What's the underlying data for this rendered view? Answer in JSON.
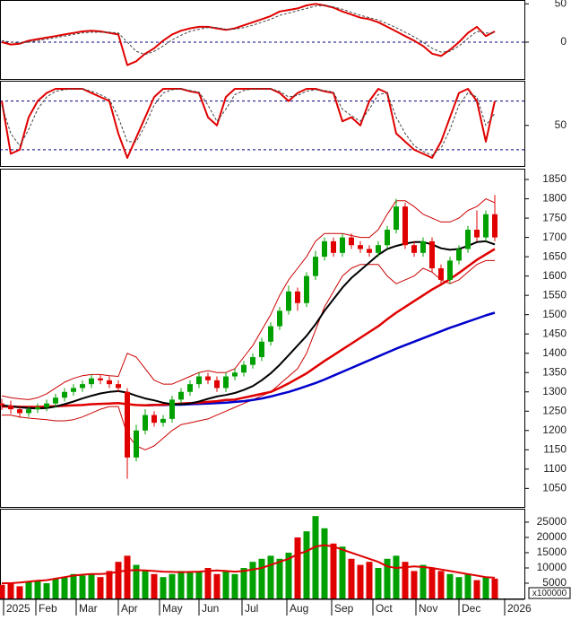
{
  "chart_data": [
    {
      "type": "line",
      "xlim": [
        -0.2,
        58.3
      ],
      "ylim": [
        -48,
        55
      ],
      "yticks": [
        0,
        50
      ],
      "reference_lines": [
        0
      ],
      "series": [
        {
          "color": "#e00000",
          "width": 2,
          "values": [
            0,
            -3,
            -2,
            2,
            4,
            6,
            8,
            10,
            12,
            14,
            15,
            14,
            12,
            10,
            -30,
            -25,
            -15,
            -8,
            2,
            10,
            15,
            18,
            20,
            20,
            18,
            16,
            18,
            22,
            26,
            30,
            34,
            40,
            42,
            44,
            48,
            50,
            48,
            45,
            40,
            36,
            32,
            30,
            26,
            20,
            14,
            8,
            2,
            -5,
            -15,
            -18,
            -10,
            0,
            12,
            20,
            8,
            14
          ]
        },
        {
          "color": "#444444",
          "width": 1,
          "dash": "3,2",
          "values": [
            2,
            0,
            -1,
            0,
            2,
            4,
            6,
            8,
            10,
            12,
            13,
            13,
            13,
            12,
            0,
            -12,
            -16,
            -12,
            -5,
            3,
            9,
            14,
            17,
            19,
            19,
            17,
            17,
            19,
            22,
            26,
            30,
            35,
            38,
            41,
            44,
            47,
            48,
            46,
            43,
            39,
            35,
            32,
            29,
            24,
            19,
            13,
            7,
            0,
            -8,
            -13,
            -12,
            -5,
            5,
            14,
            12,
            12
          ]
        }
      ]
    },
    {
      "type": "line",
      "xlim": [
        -0.2,
        58.3
      ],
      "ylim": [
        0,
        105
      ],
      "yticks": [
        50
      ],
      "reference_lines": [
        20,
        80
      ],
      "series": [
        {
          "color": "#e00000",
          "width": 2,
          "values": [
            80,
            15,
            20,
            60,
            80,
            90,
            95,
            95,
            95,
            95,
            90,
            85,
            80,
            40,
            10,
            35,
            60,
            85,
            95,
            95,
            95,
            92,
            90,
            60,
            50,
            85,
            95,
            95,
            95,
            95,
            95,
            90,
            80,
            90,
            95,
            95,
            92,
            90,
            55,
            60,
            50,
            80,
            95,
            90,
            40,
            30,
            20,
            15,
            10,
            30,
            60,
            90,
            95,
            80,
            30,
            80
          ]
        },
        {
          "color": "#444444",
          "width": 1,
          "dash": "3,2",
          "values": [
            75,
            40,
            25,
            45,
            70,
            85,
            92,
            94,
            95,
            95,
            92,
            88,
            82,
            60,
            30,
            30,
            50,
            75,
            90,
            94,
            95,
            93,
            91,
            75,
            55,
            70,
            88,
            93,
            95,
            95,
            95,
            92,
            85,
            87,
            92,
            94,
            93,
            91,
            70,
            62,
            55,
            70,
            88,
            90,
            60,
            40,
            25,
            18,
            13,
            22,
            45,
            75,
            90,
            85,
            50,
            65
          ]
        }
      ]
    },
    {
      "type": "candlestick",
      "xlim": [
        -0.2,
        58.3
      ],
      "ylim": [
        1002,
        1878
      ],
      "yticks": [
        1050,
        1100,
        1150,
        1200,
        1250,
        1300,
        1350,
        1400,
        1450,
        1500,
        1550,
        1600,
        1650,
        1700,
        1750,
        1800,
        1850
      ],
      "up_color": "#00a000",
      "down_color": "#e00000",
      "open": [
        1270,
        1265,
        1255,
        1245,
        1255,
        1260,
        1270,
        1285,
        1300,
        1310,
        1320,
        1335,
        1330,
        1320,
        1300,
        1130,
        1200,
        1240,
        1220,
        1230,
        1280,
        1300,
        1320,
        1340,
        1330,
        1310,
        1340,
        1350,
        1370,
        1390,
        1430,
        1470,
        1510,
        1560,
        1530,
        1600,
        1650,
        1690,
        1660,
        1700,
        1680,
        1670,
        1660,
        1680,
        1720,
        1780,
        1680,
        1660,
        1690,
        1620,
        1590,
        1640,
        1670,
        1720,
        1700,
        1760
      ],
      "high": [
        1282,
        1277,
        1265,
        1262,
        1270,
        1280,
        1295,
        1310,
        1320,
        1330,
        1345,
        1345,
        1340,
        1330,
        1310,
        1215,
        1255,
        1250,
        1240,
        1290,
        1310,
        1330,
        1350,
        1350,
        1340,
        1350,
        1360,
        1380,
        1400,
        1440,
        1480,
        1520,
        1575,
        1570,
        1610,
        1665,
        1700,
        1700,
        1710,
        1710,
        1690,
        1680,
        1690,
        1730,
        1800,
        1790,
        1690,
        1700,
        1700,
        1630,
        1650,
        1680,
        1730,
        1770,
        1770,
        1810
      ],
      "low": [
        1253,
        1243,
        1233,
        1235,
        1245,
        1250,
        1260,
        1275,
        1290,
        1300,
        1310,
        1320,
        1310,
        1300,
        1075,
        1120,
        1190,
        1210,
        1210,
        1220,
        1270,
        1290,
        1310,
        1320,
        1300,
        1300,
        1330,
        1340,
        1360,
        1380,
        1420,
        1460,
        1500,
        1510,
        1520,
        1590,
        1640,
        1650,
        1650,
        1670,
        1660,
        1650,
        1650,
        1670,
        1710,
        1670,
        1650,
        1650,
        1610,
        1575,
        1580,
        1630,
        1660,
        1690,
        1690,
        1690
      ],
      "close": [
        1265,
        1255,
        1245,
        1255,
        1260,
        1270,
        1285,
        1300,
        1310,
        1320,
        1335,
        1330,
        1320,
        1310,
        1130,
        1200,
        1240,
        1220,
        1230,
        1280,
        1300,
        1320,
        1340,
        1330,
        1310,
        1340,
        1350,
        1370,
        1390,
        1430,
        1470,
        1510,
        1560,
        1530,
        1600,
        1650,
        1690,
        1660,
        1700,
        1680,
        1670,
        1660,
        1680,
        1720,
        1780,
        1680,
        1660,
        1690,
        1620,
        1590,
        1640,
        1670,
        1720,
        1700,
        1760,
        1700
      ],
      "series": [
        {
          "color": "#cc0000",
          "width": 1,
          "values": [
            1290,
            1285,
            1282,
            1280,
            1285,
            1295,
            1310,
            1325,
            1335,
            1342,
            1345,
            1345,
            1342,
            1340,
            1400,
            1390,
            1360,
            1330,
            1320,
            1320,
            1330,
            1340,
            1350,
            1355,
            1350,
            1350,
            1360,
            1390,
            1420,
            1460,
            1500,
            1550,
            1590,
            1620,
            1650,
            1690,
            1710,
            1710,
            1710,
            1705,
            1700,
            1700,
            1720,
            1760,
            1795,
            1795,
            1780,
            1760,
            1750,
            1740,
            1740,
            1750,
            1770,
            1780,
            1800,
            1790
          ]
        },
        {
          "color": "#cc0000",
          "width": 1,
          "values": [
            1240,
            1240,
            1235,
            1232,
            1230,
            1228,
            1225,
            1225,
            1228,
            1235,
            1245,
            1255,
            1262,
            1262,
            1190,
            1160,
            1150,
            1160,
            1180,
            1200,
            1215,
            1220,
            1225,
            1230,
            1240,
            1250,
            1260,
            1270,
            1280,
            1290,
            1300,
            1320,
            1340,
            1360,
            1400,
            1460,
            1520,
            1560,
            1600,
            1620,
            1630,
            1630,
            1630,
            1600,
            1580,
            1590,
            1600,
            1620,
            1610,
            1590,
            1580,
            1590,
            1610,
            1630,
            1640,
            1640
          ]
        },
        {
          "color": "#0000cc",
          "width": 2.5,
          "values": [
            null,
            null,
            null,
            null,
            null,
            null,
            null,
            null,
            null,
            null,
            null,
            null,
            null,
            null,
            null,
            null,
            1265,
            1266,
            1266,
            1267,
            1267,
            1268,
            1269,
            1270,
            1271,
            1272,
            1274,
            1276,
            1279,
            1283,
            1288,
            1294,
            1300,
            1307,
            1315,
            1323,
            1332,
            1342,
            1352,
            1362,
            1372,
            1382,
            1392,
            1402,
            1412,
            1421,
            1430,
            1439,
            1448,
            1457,
            1466,
            1474,
            1482,
            1490,
            1498,
            1505
          ]
        },
        {
          "color": "#e00000",
          "width": 2.5,
          "values": [
            1262,
            1262,
            1261,
            1261,
            1261,
            1262,
            1263,
            1264,
            1265,
            1266,
            1268,
            1269,
            1270,
            1271,
            1268,
            1266,
            1265,
            1266,
            1267,
            1268,
            1270,
            1271,
            1272,
            1274,
            1276,
            1279,
            1280,
            1285,
            1290,
            1295,
            1300,
            1310,
            1322,
            1335,
            1348,
            1364,
            1380,
            1395,
            1410,
            1425,
            1440,
            1455,
            1470,
            1488,
            1505,
            1520,
            1535,
            1550,
            1565,
            1578,
            1592,
            1608,
            1625,
            1642,
            1656,
            1670
          ]
        },
        {
          "color": "#000000",
          "width": 2,
          "values": [
            1265,
            1263,
            1260,
            1258,
            1257,
            1258,
            1262,
            1268,
            1275,
            1283,
            1290,
            1296,
            1300,
            1302,
            1298,
            1290,
            1283,
            1278,
            1272,
            1268,
            1268,
            1270,
            1275,
            1282,
            1288,
            1292,
            1297,
            1305,
            1315,
            1330,
            1348,
            1370,
            1395,
            1420,
            1445,
            1475,
            1510,
            1540,
            1570,
            1595,
            1615,
            1635,
            1655,
            1670,
            1678,
            1684,
            1688,
            1688,
            1682,
            1672,
            1668,
            1670,
            1678,
            1688,
            1690,
            1682
          ]
        }
      ]
    },
    {
      "type": "bar",
      "xlim": [
        -0.2,
        58.3
      ],
      "ylim": [
        0,
        29400
      ],
      "yticks": [
        5000,
        10000,
        15000,
        20000,
        25000
      ],
      "unit_label": "x100000",
      "up_color": "#00a000",
      "down_color": "#e00000",
      "values": [
        4500,
        5000,
        4000,
        5500,
        6000,
        5000,
        6500,
        7000,
        8000,
        7500,
        8000,
        7000,
        9000,
        12000,
        14000,
        11000,
        9000,
        8000,
        7000,
        8000,
        9000,
        8500,
        9000,
        10000,
        8000,
        9000,
        8000,
        10000,
        12000,
        13000,
        14000,
        13000,
        15000,
        20000,
        22000,
        27000,
        23000,
        18000,
        17000,
        13000,
        11000,
        12000,
        10000,
        13000,
        14000,
        12000,
        9000,
        11000,
        10000,
        9000,
        8000,
        7000,
        8000,
        6000,
        7000,
        6500
      ],
      "series": [
        {
          "color": "#e00000",
          "width": 2,
          "values": [
            5000,
            5000,
            5200,
            5500,
            5800,
            6000,
            6500,
            7000,
            7500,
            7800,
            8000,
            8000,
            8200,
            8800,
            9200,
            9300,
            9200,
            9000,
            8800,
            8700,
            8600,
            8700,
            8800,
            9000,
            9200,
            9000,
            8800,
            9000,
            9500,
            10000,
            11000,
            12000,
            13000,
            14500,
            15500,
            17000,
            17500,
            17000,
            16000,
            15000,
            14000,
            13000,
            12000,
            10500,
            10000,
            10200,
            10500,
            10300,
            10000,
            9500,
            9000,
            8500,
            8000,
            7500,
            7000,
            6800
          ]
        }
      ],
      "xticks": [
        {
          "value": 0.2,
          "label": "2025"
        },
        {
          "value": 3.8,
          "label": "Feb"
        },
        {
          "value": 8.3,
          "label": "Mar"
        },
        {
          "value": 13,
          "label": "Apr"
        },
        {
          "value": 17.6,
          "label": "May"
        },
        {
          "value": 22,
          "label": "Jun"
        },
        {
          "value": 26.8,
          "label": "Jul"
        },
        {
          "value": 31.8,
          "label": "Aug"
        },
        {
          "value": 36.8,
          "label": "Sep"
        },
        {
          "value": 41.4,
          "label": "Oct"
        },
        {
          "value": 46.2,
          "label": "Nov"
        },
        {
          "value": 51,
          "label": "Dec"
        },
        {
          "value": 56.1,
          "label": "2026"
        }
      ]
    }
  ]
}
